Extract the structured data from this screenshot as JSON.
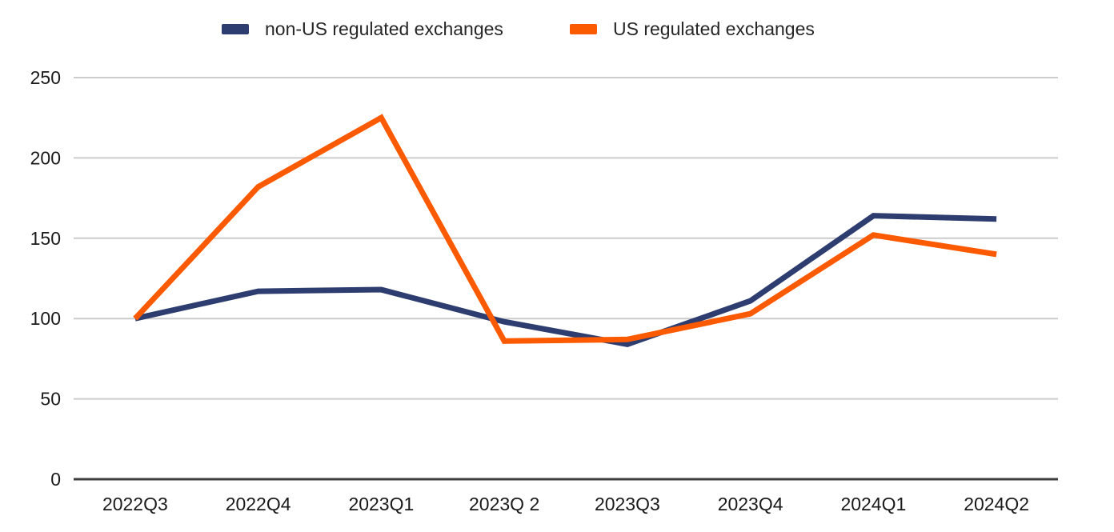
{
  "chart_data": {
    "type": "line",
    "categories": [
      "2022Q3",
      "2022Q4",
      "2023Q1",
      "2023Q 2",
      "2023Q3",
      "2023Q4",
      "2024Q1",
      "2024Q2"
    ],
    "series": [
      {
        "name": "non-US regulated exchanges",
        "color": "#2E3D6F",
        "values": [
          100,
          117,
          118,
          98,
          84,
          111,
          164,
          162
        ]
      },
      {
        "name": "US regulated exchanges",
        "color": "#FB5A00",
        "values": [
          100,
          182,
          225,
          86,
          87,
          103,
          152,
          140
        ]
      }
    ],
    "title": "",
    "xlabel": "",
    "ylabel": "",
    "ylim": [
      0,
      250
    ],
    "yticks": [
      0,
      50,
      100,
      150,
      200,
      250
    ],
    "grid": true,
    "legend_position": "top",
    "gridline_color": "#cccccc",
    "axis_line_color": "#3d3d3d",
    "tick_label_color": "#1a1a1a",
    "background_color": "#ffffff"
  }
}
